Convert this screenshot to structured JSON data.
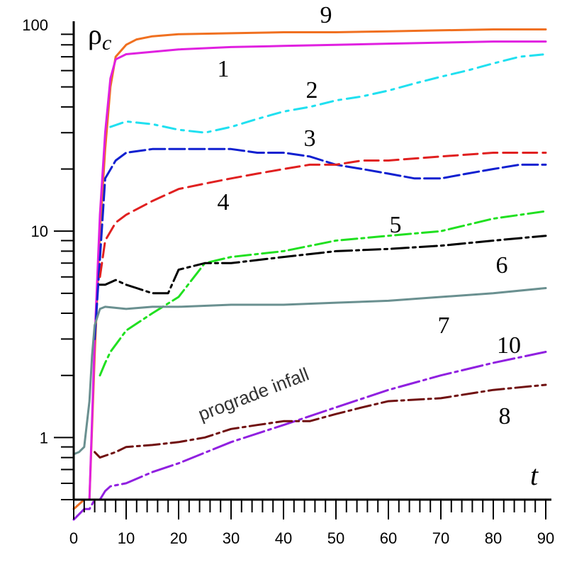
{
  "chart_data": {
    "type": "line",
    "title": "",
    "xlabel": "t",
    "ylabel_main": "ρ",
    "ylabel_sub": "c",
    "yscale": "log",
    "xlim": [
      0,
      90
    ],
    "ylim": [
      0.5,
      100
    ],
    "x_ticks": [
      0,
      10,
      20,
      30,
      40,
      50,
      60,
      70,
      80,
      90
    ],
    "y_ticks": [
      1,
      10,
      100
    ],
    "annotation": "prograde infall",
    "series": [
      {
        "name": "9",
        "color": "#f07020",
        "dash": "",
        "x": [
          0,
          2,
          3,
          4,
          5,
          6,
          7,
          8,
          10,
          12,
          15,
          20,
          30,
          40,
          50,
          60,
          70,
          80,
          90
        ],
        "y": [
          0.45,
          0.5,
          0.5,
          2.5,
          10,
          25,
          50,
          70,
          80,
          85,
          88,
          90,
          91,
          92,
          92,
          93,
          94,
          95,
          95
        ]
      },
      {
        "name": "1",
        "color": "#e020e0",
        "dash": "",
        "x": [
          3,
          4,
          5,
          6,
          7,
          8,
          10,
          15,
          20,
          30,
          40,
          50,
          60,
          70,
          80,
          90
        ],
        "y": [
          0.5,
          3,
          12,
          30,
          55,
          68,
          72,
          74,
          76,
          78,
          79,
          80,
          81,
          82,
          83,
          83
        ]
      },
      {
        "name": "2",
        "color": "#20e0f0",
        "dash": "18 8 4 8",
        "x": [
          7,
          10,
          15,
          20,
          25,
          30,
          35,
          40,
          45,
          50,
          55,
          60,
          65,
          70,
          75,
          80,
          85,
          90
        ],
        "y": [
          32,
          34,
          33,
          31,
          30,
          32,
          35,
          38,
          40,
          43,
          45,
          48,
          52,
          56,
          60,
          65,
          70,
          72
        ]
      },
      {
        "name": "3",
        "color": "#1020d0",
        "dash": "22 6",
        "x": [
          4,
          6,
          8,
          10,
          15,
          20,
          25,
          30,
          35,
          40,
          45,
          50,
          55,
          60,
          65,
          70,
          75,
          80,
          85,
          90
        ],
        "y": [
          3,
          18,
          22,
          24,
          25,
          25,
          25,
          25,
          24,
          24,
          23,
          21,
          20,
          19,
          18,
          18,
          19,
          20,
          21,
          21
        ]
      },
      {
        "name": "4",
        "color": "#e02020",
        "dash": "20 8",
        "x": [
          5,
          6,
          8,
          10,
          15,
          20,
          25,
          30,
          35,
          40,
          45,
          50,
          55,
          60,
          70,
          80,
          90
        ],
        "y": [
          6,
          9,
          11,
          12,
          14,
          16,
          17,
          18,
          19,
          20,
          21,
          21,
          22,
          22,
          23,
          24,
          24
        ]
      },
      {
        "name": "5",
        "color": "#20e020",
        "dash": "22 6 4 6",
        "x": [
          5,
          6,
          7,
          10,
          15,
          20,
          25,
          30,
          40,
          50,
          60,
          70,
          80,
          90
        ],
        "y": [
          2,
          2.3,
          2.6,
          3.3,
          4,
          4.8,
          7,
          7.5,
          8,
          9,
          9.5,
          10,
          11.5,
          12.5
        ]
      },
      {
        "name": "6",
        "color": "#000000",
        "dash": "24 6 4 6",
        "x": [
          5,
          6,
          8,
          10,
          12,
          15,
          18,
          20,
          25,
          30,
          40,
          50,
          60,
          70,
          80,
          90
        ],
        "y": [
          5.5,
          5.5,
          5.8,
          5.5,
          5.3,
          5,
          5,
          6.5,
          7,
          7,
          7.5,
          8,
          8.2,
          8.5,
          9,
          9.5
        ]
      },
      {
        "name": "7",
        "color": "#6a9090",
        "dash": "",
        "x": [
          0,
          1,
          2,
          3,
          3.5,
          4,
          5,
          6,
          10,
          15,
          20,
          30,
          40,
          50,
          60,
          70,
          80,
          90
        ],
        "y": [
          0.83,
          0.85,
          0.9,
          1.5,
          2.5,
          3.5,
          4.2,
          4.3,
          4.2,
          4.3,
          4.3,
          4.4,
          4.4,
          4.5,
          4.6,
          4.8,
          5,
          5.3
        ]
      },
      {
        "name": "10",
        "color": "#9020e0",
        "dash": "30 6 4 6",
        "x": [
          0,
          2,
          3,
          4,
          5,
          6,
          7,
          10,
          15,
          20,
          30,
          40,
          50,
          60,
          70,
          80,
          90
        ],
        "y": [
          0.4,
          0.45,
          0.45,
          0.5,
          0.5,
          0.55,
          0.58,
          0.6,
          0.68,
          0.75,
          0.95,
          1.15,
          1.4,
          1.7,
          2,
          2.3,
          2.6
        ]
      },
      {
        "name": "8",
        "color": "#701010",
        "dash": "22 6 4 6",
        "x": [
          4,
          5,
          8,
          10,
          15,
          20,
          25,
          30,
          35,
          40,
          45,
          50,
          55,
          60,
          70,
          80,
          90
        ],
        "y": [
          0.85,
          0.8,
          0.85,
          0.9,
          0.92,
          0.95,
          1,
          1.1,
          1.15,
          1.2,
          1.2,
          1.3,
          1.4,
          1.5,
          1.55,
          1.7,
          1.8
        ]
      }
    ]
  }
}
